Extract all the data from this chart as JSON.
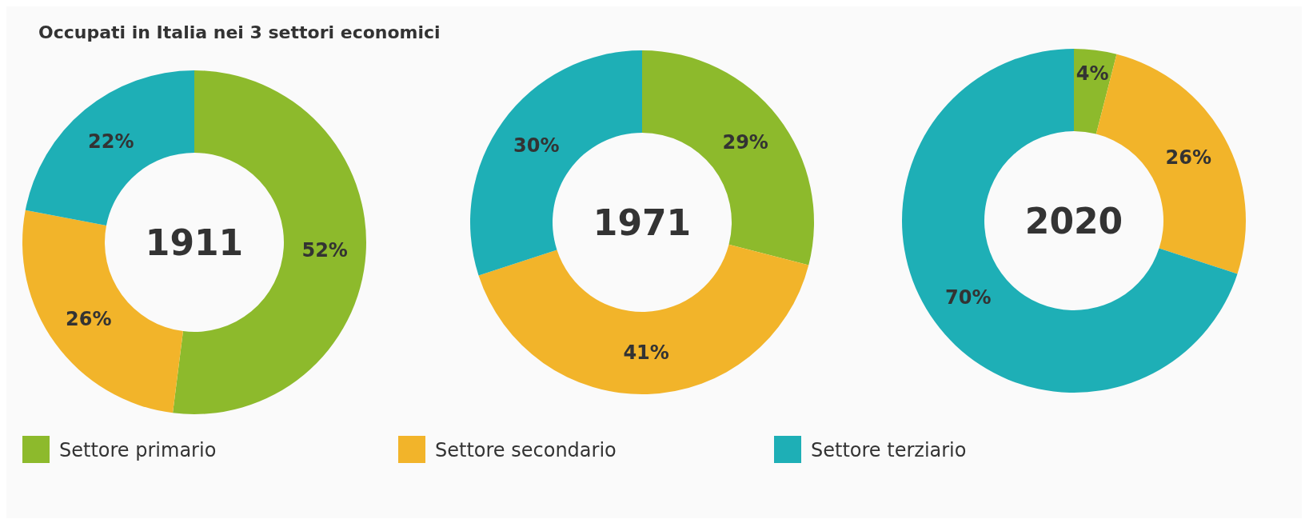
{
  "chart_data": [
    {
      "type": "donut",
      "title": "Occupati in Italia nei 3 settori economici",
      "annotations": [
        "1911"
      ],
      "categories": [
        "Settore primario",
        "Settore secondario",
        "Settore terziario"
      ],
      "values": [
        52,
        26,
        22
      ],
      "value_labels": [
        "52%",
        "26%",
        "22%"
      ],
      "colors": [
        "#8dba2c",
        "#f2b42a",
        "#1eafb6"
      ],
      "legend": "bottom"
    },
    {
      "type": "donut",
      "annotations": [
        "1971"
      ],
      "categories": [
        null,
        null,
        null
      ],
      "values": [
        29,
        41,
        30
      ],
      "value_labels": [
        "29%",
        "41%",
        "30%"
      ],
      "colors": [
        "#8dba2c",
        "#f2b42a",
        "#1eafb6"
      ]
    },
    {
      "type": "donut",
      "annotations": [
        "2020"
      ],
      "categories": [
        null,
        null,
        null
      ],
      "values": [
        4,
        26,
        70
      ],
      "value_labels": [
        "4%",
        "26%",
        "70%"
      ],
      "colors": [
        "#8dba2c",
        "#f2b42a",
        "#1eafb6"
      ]
    }
  ]
}
